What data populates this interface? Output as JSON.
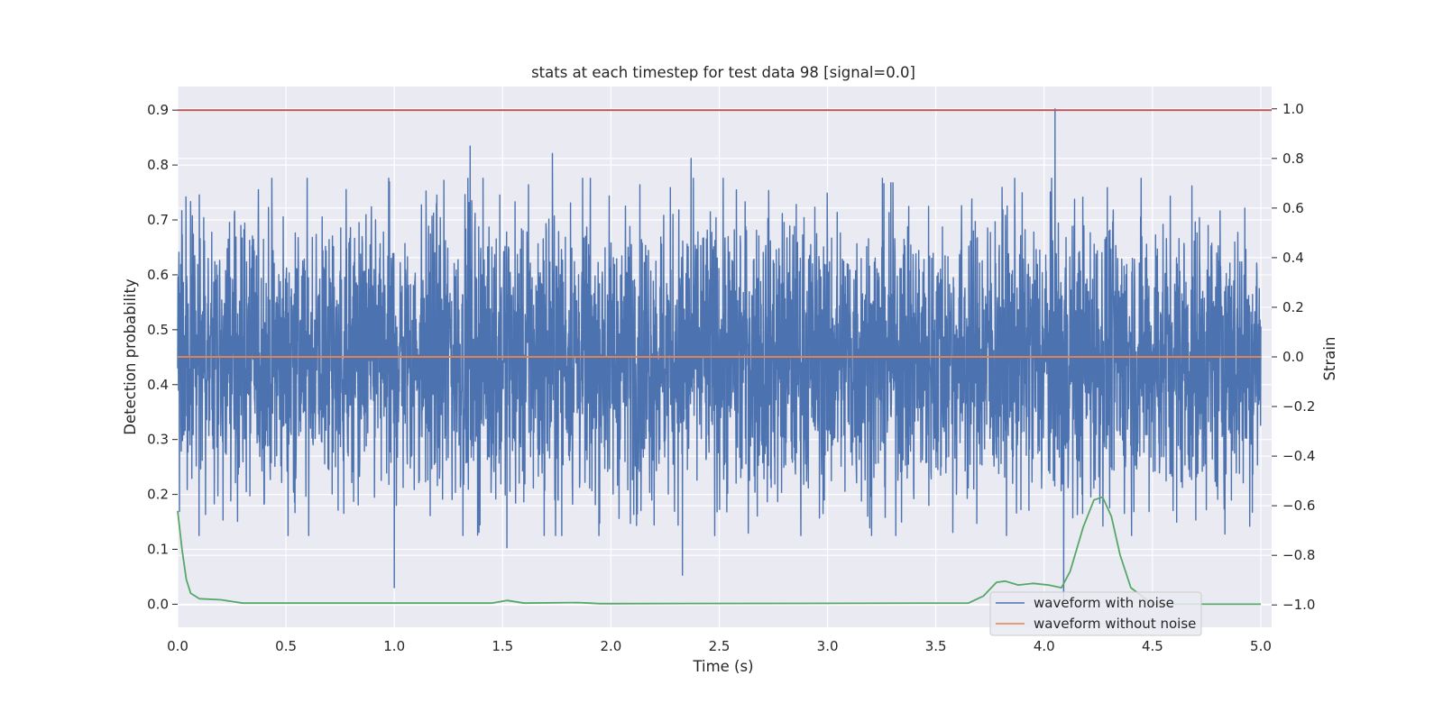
{
  "chart_data": {
    "type": "line",
    "title": "stats at each timestep for test data 98 [signal=0.0]",
    "xlabel": "Time (s)",
    "ylabel_left": "Detection probability",
    "ylabel_right": "Strain",
    "xlim": [
      0.0,
      5.05
    ],
    "ylim_left": [
      -0.042,
      0.943
    ],
    "ylim_right": [
      -1.09,
      1.09
    ],
    "x_ticks": [
      "0.0",
      "0.5",
      "1.0",
      "1.5",
      "2.0",
      "2.5",
      "3.0",
      "3.5",
      "4.0",
      "4.5",
      "5.0"
    ],
    "y_left_ticks": [
      "0.0",
      "0.1",
      "0.2",
      "0.3",
      "0.4",
      "0.5",
      "0.6",
      "0.7",
      "0.8",
      "0.9"
    ],
    "y_right_ticks": [
      "−1.0",
      "−0.8",
      "−0.6",
      "−0.4",
      "−0.2",
      "0.0",
      "0.2",
      "0.4",
      "0.6",
      "0.8",
      "1.0"
    ],
    "grid": true,
    "legend_position": "lower-right",
    "series": [
      {
        "name": "waveform with noise",
        "axis": "right",
        "color": "#4c72b0",
        "description": "dense noisy strain signal between roughly -1 and 1",
        "typical_range": [
          -0.55,
          0.55
        ],
        "spikes": [
          {
            "x": 1.35,
            "y": 0.85
          },
          {
            "x": 1.73,
            "y": 0.82
          },
          {
            "x": 2.37,
            "y": 0.8
          },
          {
            "x": 4.05,
            "y": 1.0
          },
          {
            "x": 4.09,
            "y": -0.98
          },
          {
            "x": 1.0,
            "y": -0.93
          },
          {
            "x": 2.33,
            "y": -0.88
          },
          {
            "x": 1.52,
            "y": -0.77
          }
        ]
      },
      {
        "name": "waveform without noise",
        "axis": "right",
        "color": "#dd8452",
        "x": [
          0.0,
          5.0
        ],
        "y": [
          0.0,
          0.0
        ]
      },
      {
        "axis": "left",
        "color": "#55a868",
        "x": [
          0.0,
          0.02,
          0.04,
          0.06,
          0.1,
          0.2,
          0.3,
          1.45,
          1.52,
          1.6,
          1.85,
          1.9,
          1.95,
          3.65,
          3.72,
          3.78,
          3.82,
          3.88,
          3.95,
          4.02,
          4.08,
          4.12,
          4.18,
          4.23,
          4.27,
          4.31,
          4.35,
          4.4,
          4.5,
          5.0
        ],
        "y": [
          0.17,
          0.1,
          0.045,
          0.02,
          0.01,
          0.008,
          0.002,
          0.002,
          0.007,
          0.002,
          0.003,
          0.002,
          0.001,
          0.002,
          0.015,
          0.04,
          0.042,
          0.035,
          0.038,
          0.035,
          0.03,
          0.06,
          0.14,
          0.19,
          0.195,
          0.16,
          0.09,
          0.03,
          0.0,
          0.0
        ]
      },
      {
        "axis": "left",
        "color": "#c44e52",
        "x": [
          0.0,
          5.05
        ],
        "y": [
          0.9,
          0.9
        ]
      }
    ]
  }
}
